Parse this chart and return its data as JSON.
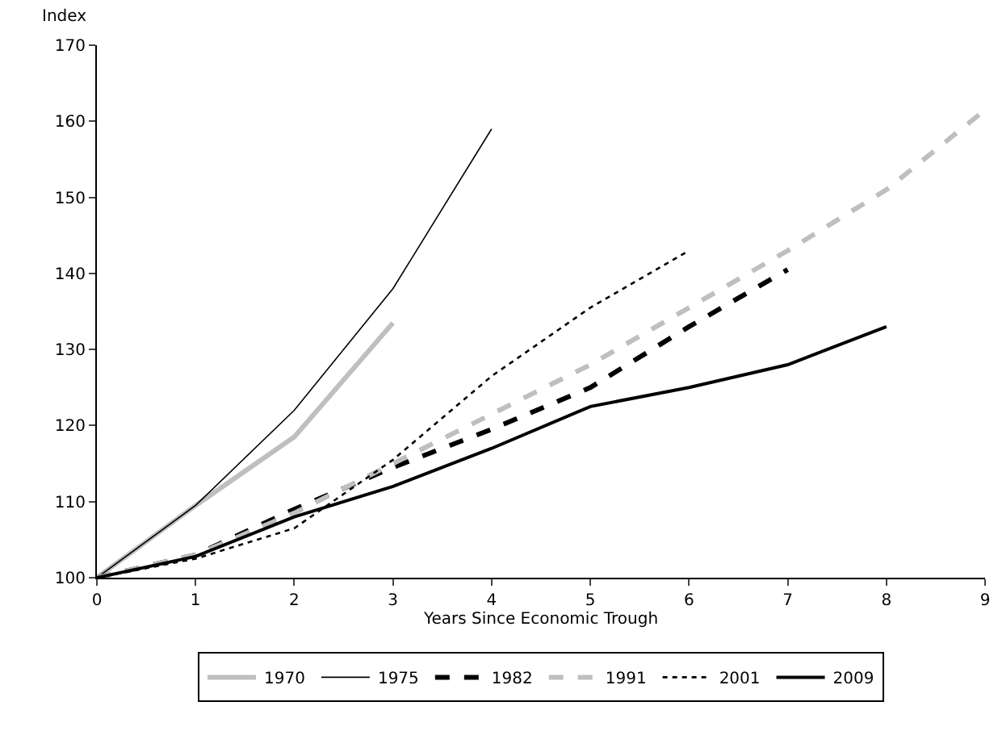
{
  "chart_data": {
    "type": "line",
    "xlabel": "Years Since Economic Trough",
    "ylabel": "Index",
    "x": [
      0,
      1,
      2,
      3,
      4,
      5,
      6,
      7,
      8,
      9
    ],
    "xlim": [
      0,
      9
    ],
    "xticks": [
      0,
      1,
      2,
      3,
      4,
      5,
      6,
      7,
      8,
      9
    ],
    "ylim": [
      100,
      170
    ],
    "yticks": [
      100,
      110,
      120,
      130,
      140,
      150,
      160,
      170
    ],
    "grid": false,
    "legend": "bottom",
    "marker": "none",
    "series": [
      {
        "name": "1970",
        "color": "#bfbfbf",
        "line_style": "solid",
        "values": [
          100,
          109.5,
          118.5,
          133.5,
          null,
          null,
          null,
          null,
          null,
          null
        ]
      },
      {
        "name": "1975",
        "color": "#000000",
        "line_style": "solid",
        "values": [
          100,
          109.5,
          122,
          138,
          159,
          null,
          null,
          null,
          null,
          null
        ]
      },
      {
        "name": "1982",
        "color": "#000000",
        "line_style": "dashed",
        "values": [
          100,
          103,
          109,
          114.5,
          119.5,
          125,
          133,
          140.5,
          null,
          null
        ]
      },
      {
        "name": "1991",
        "color": "#bfbfbf",
        "line_style": "dashed",
        "values": [
          100,
          103,
          108.5,
          115,
          121.5,
          128,
          135.5,
          143,
          151,
          161.5
        ]
      },
      {
        "name": "2001",
        "color": "#000000",
        "line_style": "dotted",
        "values": [
          100,
          102.5,
          106.5,
          115.5,
          126.5,
          135.5,
          143,
          null,
          null,
          null
        ]
      },
      {
        "name": "2009",
        "color": "#000000",
        "line_style": "solid",
        "values": [
          100,
          102.8,
          108,
          112,
          117,
          122.5,
          125,
          128,
          133,
          null
        ]
      }
    ]
  }
}
